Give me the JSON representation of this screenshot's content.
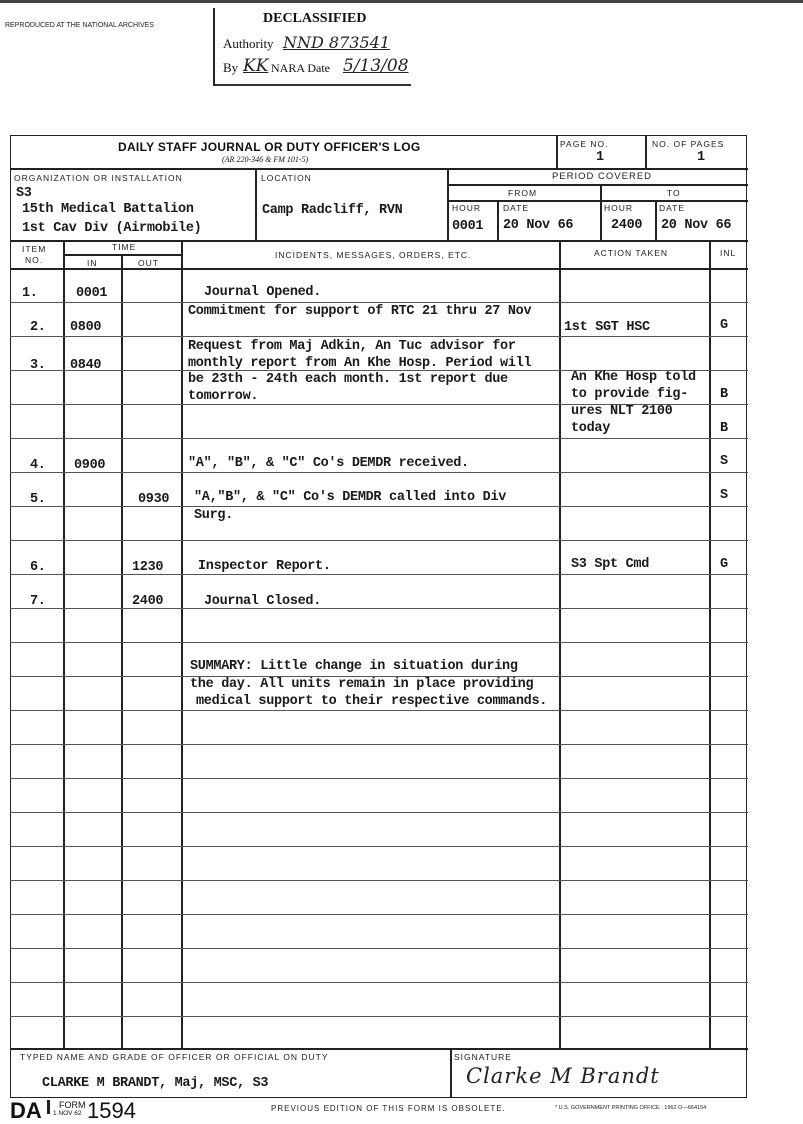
{
  "archive_note": "REPRODUCED AT THE NATIONAL ARCHIVES",
  "declassification": {
    "title": "DECLASSIFIED",
    "authority_label": "Authority",
    "authority_value": "NND 873541",
    "by_label": "By",
    "by_value": "KK",
    "nara_date_label": "NARA Date",
    "nara_date_value": "5/13/08"
  },
  "form": {
    "title": "DAILY STAFF JOURNAL OR DUTY OFFICER'S LOG",
    "subtitle": "(AR 220-346 & FM 101-5)",
    "page_no_label": "PAGE NO.",
    "page_no": "1",
    "no_of_pages_label": "NO. OF PAGES",
    "no_of_pages": "1",
    "organization_label": "ORGANIZATION OR INSTALLATION",
    "organization_lines": [
      "S3",
      "15th Medical Battalion",
      "1st Cav Div (Airmobile)"
    ],
    "location_label": "LOCATION",
    "location": "Camp Radcliff, RVN",
    "period_label": "PERIOD COVERED",
    "from_label": "FROM",
    "to_label": "TO",
    "hour_label": "HOUR",
    "date_label": "DATE",
    "from_hour": "0001",
    "from_date": "20 Nov 66",
    "to_hour": "2400",
    "to_date": "20 Nov 66",
    "columns": {
      "item": "ITEM",
      "item_no": "NO.",
      "time": "TIME",
      "in": "IN",
      "out": "OUT",
      "incidents": "INCIDENTS, MESSAGES, ORDERS, ETC.",
      "action": "ACTION TAKEN",
      "inl": "INL"
    }
  },
  "entries": [
    {
      "item": "1.",
      "in": "0001",
      "out": "",
      "incident": [
        "Journal Opened."
      ],
      "action": [],
      "inl": []
    },
    {
      "item": "2.",
      "in": "0800",
      "out": "",
      "incident": [
        "Commitment for support of RTC 21 thru 27 Nov"
      ],
      "action": [
        "1st SGT HSC"
      ],
      "inl": [
        "G"
      ]
    },
    {
      "item": "3.",
      "in": "0840",
      "out": "",
      "incident": [
        "Request from Maj Adkin, An Tuc advisor for",
        "monthly report from An Khe Hosp.  Period will",
        "be 23th - 24th each month.  1st report due",
        "tomorrow."
      ],
      "action": [
        "An Khe Hosp told",
        "to provide fig-",
        "ures NLT 2100",
        "today"
      ],
      "inl": [
        "B",
        "B"
      ]
    },
    {
      "item": "4.",
      "in": "0900",
      "out": "",
      "incident": [
        "\"A\", \"B\", & \"C\" Co's DEMDR received."
      ],
      "action": [],
      "inl": [
        "S"
      ]
    },
    {
      "item": "5.",
      "in": "",
      "out": "0930",
      "incident": [
        "\"A,\"B\", & \"C\" Co's DEMDR called into Div",
        "Surg."
      ],
      "action": [],
      "inl": [
        "S"
      ]
    },
    {
      "item": "6.",
      "in": "",
      "out": "1230",
      "incident": [
        "Inspector Report."
      ],
      "action": [
        "S3 Spt Cmd"
      ],
      "inl": [
        "G"
      ]
    },
    {
      "item": "7.",
      "in": "",
      "out": "2400",
      "incident": [
        "Journal Closed."
      ],
      "action": [],
      "inl": []
    }
  ],
  "summary": [
    "SUMMARY:  Little change in situation during",
    "the day.  All units remain in place providing",
    "medical support to their respective commands."
  ],
  "footer": {
    "officer_label": "TYPED NAME AND GRADE OF OFFICER OR OFFICIAL ON DUTY",
    "officer_name": "CLARKE M BRANDT, Maj, MSC, S3",
    "signature_label": "SIGNATURE",
    "signature": "Clarke M Brandt",
    "form_da": "DA",
    "form_word": "FORM",
    "form_date": "1 NOV 62",
    "form_number": "1594",
    "obsolete_note": "PREVIOUS EDITION OF THIS FORM IS OBSOLETE.",
    "printing_note": "* U.S. GOVERNMENT PRINTING OFFICE : 1962 O—664154"
  }
}
